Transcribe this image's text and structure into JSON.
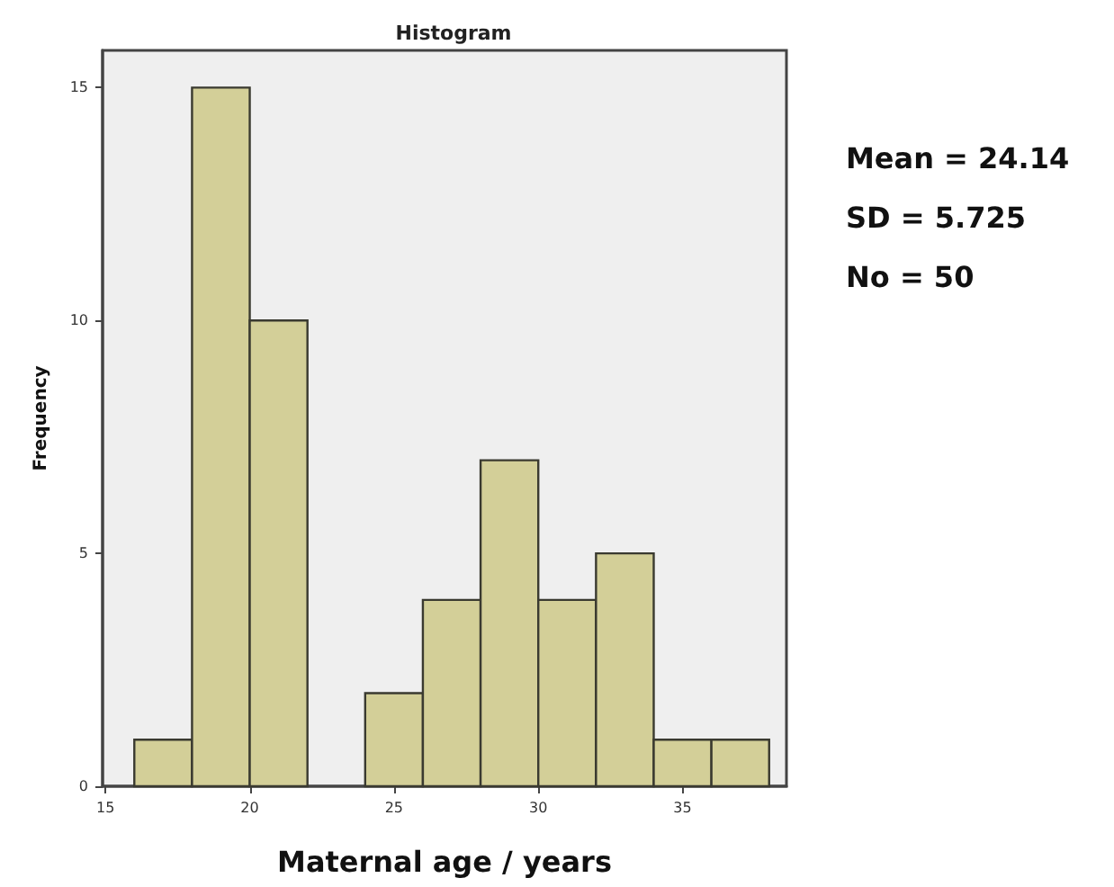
{
  "chart_data": {
    "type": "histogram",
    "title": "Histogram",
    "xlabel": "Maternal age / years",
    "ylabel": "Frequency",
    "bins": [
      16,
      18,
      20,
      22,
      24,
      26,
      28,
      30,
      32,
      34,
      36,
      38
    ],
    "values": [
      1,
      15,
      10,
      0,
      2,
      4,
      7,
      4,
      5,
      1,
      1
    ],
    "color": "#d3cf98",
    "xlim": [
      14.9,
      38.6
    ],
    "xticks": [
      15,
      20,
      25,
      30,
      35
    ],
    "ylim": [
      0,
      15.8
    ],
    "yticks": [
      0,
      5,
      10,
      15
    ],
    "grid": false,
    "annotations": [
      "Mean = 24.14",
      "SD = 5.725",
      "No = 50"
    ]
  }
}
